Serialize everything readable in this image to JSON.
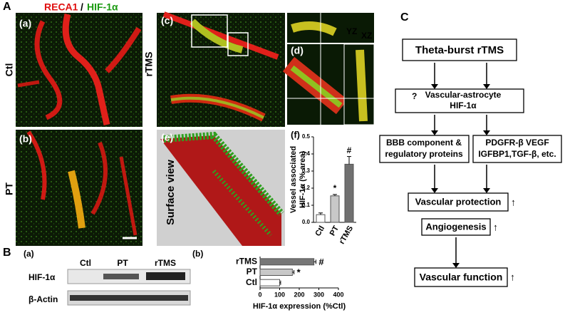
{
  "figure": {
    "panel_A": "A",
    "stain_red": "RECA1",
    "stain_sep": "/",
    "stain_green": "HIF-1α",
    "panels": {
      "a": "(a)",
      "b": "(b)",
      "c": "(c)",
      "d": "(d)",
      "e": "(e)"
    },
    "row_labels": [
      "Ctl",
      "PT",
      "rTMS"
    ],
    "ortho": [
      "YZ",
      "XZ"
    ],
    "surface": "Surface view",
    "panel_B": "B",
    "blot": {
      "panel": "(a)",
      "lanes": [
        "Ctl",
        "PT",
        "rTMS"
      ],
      "rows": [
        "HIF-1α",
        "β-Actin"
      ]
    },
    "panel_C": "C"
  },
  "chart_data": [
    {
      "type": "bar",
      "panel": "(f)",
      "ylabel": [
        "Vessel associated",
        "HIF-1α (% area)"
      ],
      "categories": [
        "Ctl",
        "PT",
        "rTMS"
      ],
      "values": [
        0.045,
        0.155,
        0.34
      ],
      "errors": [
        0.01,
        0.008,
        0.045
      ],
      "colors": [
        "#ffffff",
        "#c8c8c8",
        "#707070"
      ],
      "value_annotations": [
        null,
        "*",
        "#"
      ],
      "ylim": [
        0,
        0.5
      ],
      "yticks": [
        {
          "value": 0,
          "label": "0.0"
        },
        0.1,
        0.2,
        0.3,
        0.4,
        0.5
      ]
    },
    {
      "type": "hbar",
      "panel": "(b)",
      "xlabel": "HIF-1α expression (%Ctl)",
      "categories": [
        "rTMS",
        "PT",
        "Ctl"
      ],
      "values": [
        275,
        165,
        100
      ],
      "errors": [
        10,
        8,
        5
      ],
      "colors": [
        "#777777",
        "#c8c8c8",
        "#ffffff"
      ],
      "value_annotations": [
        "#",
        "*",
        null
      ],
      "xlim": [
        0,
        400
      ],
      "xticks": [
        0,
        100,
        200,
        300,
        400
      ]
    }
  ],
  "diagram": {
    "start": "Theta-burst rTMS",
    "hub": {
      "mark": "?",
      "lines": [
        "Vascular-astrocyte",
        "HIF-1α"
      ]
    },
    "left": [
      "BBB component &",
      "regulatory proteins"
    ],
    "right": [
      "PDGFR-β  VEGF",
      "IGFBP1,TGF-β, etc."
    ],
    "protection": "Vascular protection",
    "angiogenesis": "Angiogenesis",
    "function": "Vascular function",
    "up": "↑"
  }
}
